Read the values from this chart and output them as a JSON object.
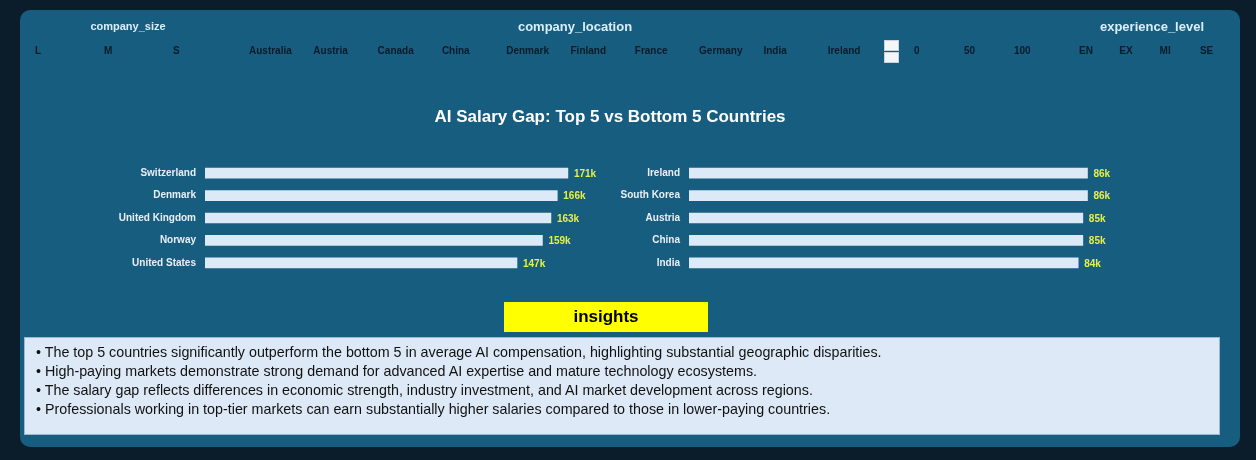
{
  "chart_data": [
    {
      "type": "other",
      "title": "company_size",
      "annotations": [
        "L",
        "M",
        "S"
      ]
    },
    {
      "type": "other",
      "title": "company_location",
      "annotations": [
        "Australia",
        "Austria",
        "Canada",
        "China",
        "Denmark",
        "Finland",
        "France",
        "Germany",
        "India",
        "Ireland"
      ]
    },
    {
      "type": "other",
      "annotations": [
        "0",
        "50",
        "100"
      ]
    },
    {
      "type": "other",
      "title": "experience_level",
      "annotations": [
        "EN",
        "EX",
        "MI",
        "SE"
      ]
    },
    {
      "type": "bar",
      "title": "AI Salary Gap: Top 5 vs Bottom 5 Countries",
      "orientation": "horizontal",
      "categories": [
        "Switzerland",
        "Denmark",
        "United Kingdom",
        "Norway",
        "United States"
      ],
      "values": [
        171,
        166,
        163,
        159,
        147
      ],
      "value_labels": [
        "171k",
        "166k",
        "163k",
        "159k",
        "147k"
      ],
      "color": "#dce9f7",
      "tick_labels": "y"
    },
    {
      "type": "bar",
      "orientation": "horizontal",
      "categories": [
        "Ireland",
        "South Korea",
        "Austria",
        "China",
        "India"
      ],
      "values": [
        86,
        86,
        85,
        85,
        84
      ],
      "value_labels": [
        "86k",
        "86k",
        "85k",
        "85k",
        "84k"
      ],
      "color": "#dce9f7",
      "tick_labels": "y"
    },
    {
      "type": "other",
      "title": "insights",
      "annotations": [
        "• The top 5 countries significantly outperform the bottom 5 in average AI compensation, highlighting substantial geographic disparities.",
        "• High-paying markets demonstrate strong demand for advanced AI expertise and mature technology ecosystems.",
        "• The salary gap reflects differences in economic strength, industry investment, and AI market development across regions.",
        "• Professionals working in top-tier markets can earn substantially higher salaries compared to those in lower-paying countries."
      ]
    }
  ]
}
